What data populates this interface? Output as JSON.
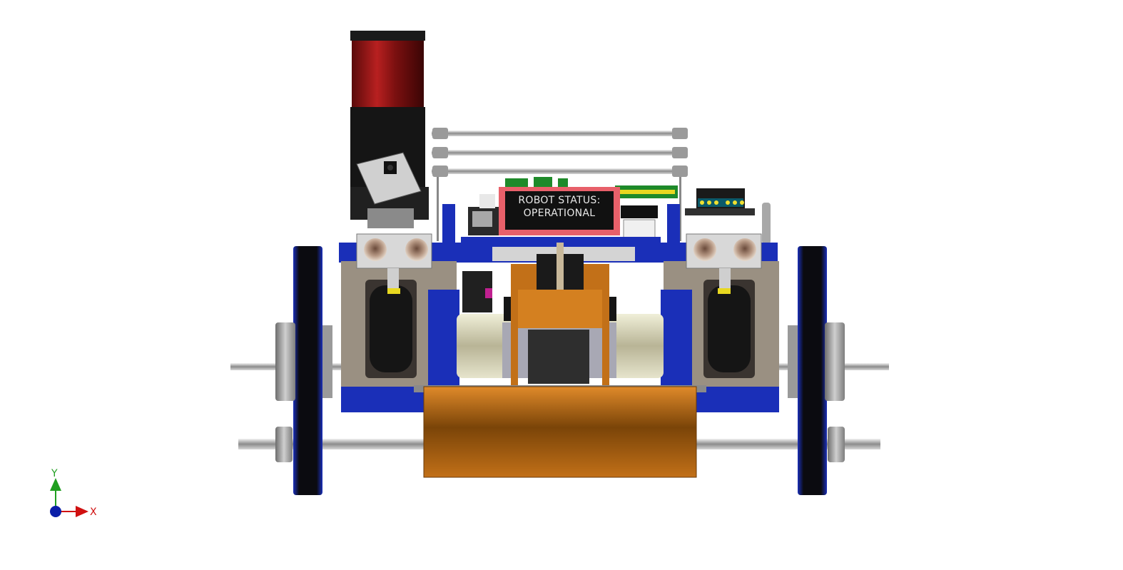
{
  "lcd": {
    "line1": "ROBOT STATUS:",
    "line2": "OPERATIONAL"
  },
  "axes": {
    "y_label": "Y",
    "x_label": "X",
    "y_color": "#1f9e1f",
    "x_color": "#d01010",
    "origin_color": "#0a1fa8"
  },
  "colors": {
    "blue_frame": "#1a2fb8",
    "plow": "#b86a18",
    "beacon": "#9a1515",
    "lcd_border": "#e8606a",
    "lcd_screen": "#111111",
    "tan_plate": "#9a9082"
  }
}
